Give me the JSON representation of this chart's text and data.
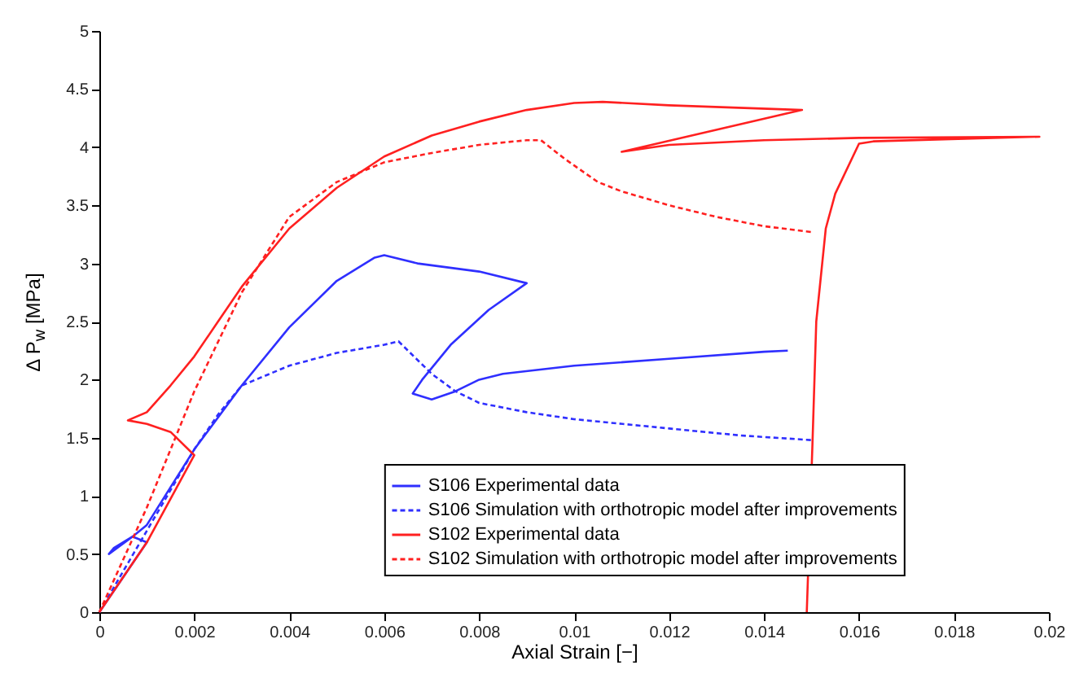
{
  "chart_data": {
    "type": "line",
    "xlabel": "Axial Strain [−]",
    "ylabel": "Δ P$_{w}$ [MPa]",
    "xlim": [
      0,
      0.02
    ],
    "ylim": [
      0,
      5
    ],
    "xticks": [
      0,
      0.002,
      0.004,
      0.006,
      0.008,
      0.01,
      0.012,
      0.014,
      0.016,
      0.018,
      0.02
    ],
    "yticks": [
      0,
      0.5,
      1,
      1.5,
      2,
      2.5,
      3,
      3.5,
      4,
      4.5,
      5
    ],
    "grid": false,
    "legend": "bottom right",
    "series": [
      {
        "name": "S106 Experimental data",
        "color": "#2f2fff",
        "line_style": "solid",
        "x": [
          0,
          0.0005,
          0.001,
          0.0007,
          0.0002,
          0.0003,
          0.0007,
          0.001,
          0.002,
          0.003,
          0.004,
          0.005,
          0.0058,
          0.006,
          0.0067,
          0.008,
          0.009,
          0.0082,
          0.0074,
          0.0068,
          0.0066,
          0.007,
          0.0075,
          0.008,
          0.0085,
          0.01,
          0.012,
          0.014,
          0.0145
        ],
        "values": [
          0,
          0.3,
          0.6,
          0.65,
          0.5,
          0.55,
          0.65,
          0.75,
          1.4,
          1.95,
          2.45,
          2.85,
          3.05,
          3.07,
          3.0,
          2.93,
          2.83,
          2.6,
          2.3,
          2.0,
          1.88,
          1.83,
          1.9,
          2.0,
          2.05,
          2.12,
          2.18,
          2.24,
          2.25
        ]
      },
      {
        "name": "S106 Simulation with orthotropic model after improvements",
        "color": "#2f2fff",
        "line_style": "dashed",
        "x": [
          0,
          0.001,
          0.002,
          0.0025,
          0.003,
          0.004,
          0.005,
          0.006,
          0.0063,
          0.007,
          0.0075,
          0.008,
          0.009,
          0.01,
          0.012,
          0.0135,
          0.015
        ],
        "values": [
          0,
          0.7,
          1.4,
          1.7,
          1.95,
          2.12,
          2.23,
          2.3,
          2.33,
          2.05,
          1.9,
          1.8,
          1.72,
          1.66,
          1.58,
          1.52,
          1.48
        ]
      },
      {
        "name": "S102 Experimental data",
        "color": "#ff2020",
        "line_style": "solid",
        "x": [
          0,
          0.001,
          0.002,
          0.0015,
          0.001,
          0.0006,
          0.001,
          0.0015,
          0.002,
          0.0025,
          0.003,
          0.004,
          0.005,
          0.006,
          0.007,
          0.008,
          0.009,
          0.01,
          0.0106,
          0.012,
          0.0148,
          0.011,
          0.012,
          0.014,
          0.016,
          0.0198,
          0.0163,
          0.016,
          0.0155,
          0.0153,
          0.0151,
          0.01502,
          0.0149
        ],
        "values": [
          0,
          0.6,
          1.35,
          1.55,
          1.62,
          1.65,
          1.72,
          1.95,
          2.2,
          2.5,
          2.8,
          3.3,
          3.65,
          3.92,
          4.1,
          4.22,
          4.32,
          4.38,
          4.39,
          4.36,
          4.32,
          3.96,
          4.02,
          4.06,
          4.08,
          4.09,
          4.05,
          4.03,
          3.6,
          3.3,
          2.5,
          1.45,
          0
        ]
      },
      {
        "name": "S102 Simulation with orthotropic model after improvements",
        "color": "#ff2020",
        "line_style": "dashed",
        "x": [
          0,
          0.001,
          0.002,
          0.003,
          0.004,
          0.005,
          0.006,
          0.007,
          0.008,
          0.009,
          0.0093,
          0.0098,
          0.0105,
          0.011,
          0.012,
          0.013,
          0.014,
          0.015
        ],
        "values": [
          0,
          0.9,
          1.9,
          2.75,
          3.4,
          3.7,
          3.87,
          3.95,
          4.02,
          4.06,
          4.06,
          3.9,
          3.7,
          3.62,
          3.5,
          3.4,
          3.32,
          3.27
        ]
      }
    ]
  }
}
